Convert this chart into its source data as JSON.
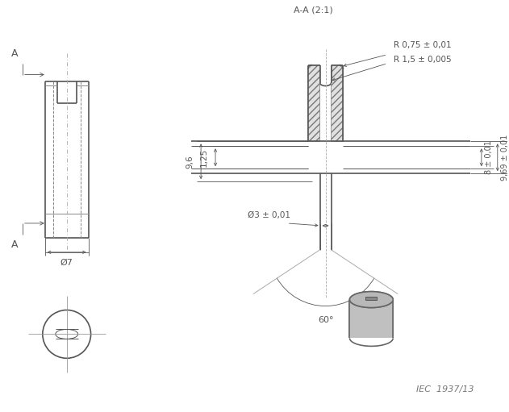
{
  "title": "A-A (2:1)",
  "iec_label": "IEC  1937/13",
  "bg_color": "#ffffff",
  "lc": "#555555",
  "annotations": {
    "R075": "R 0,75 ± 0,01",
    "R15": "R 1,5 ± 0,005",
    "dim96": "9,6",
    "dim125": "1,25",
    "dim8": "8 ± 0,01",
    "dim969": "9,69 ± 0,01",
    "dim3": "Ø3 ± 0,01",
    "dim7": "Ø7",
    "angle60": "60°",
    "A_label": "A"
  }
}
